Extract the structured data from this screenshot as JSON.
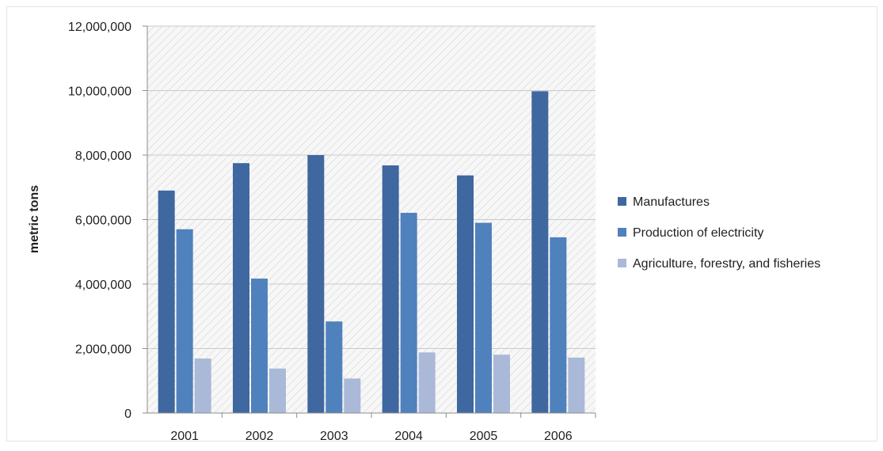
{
  "chart_data": {
    "type": "bar",
    "title": "",
    "xlabel": "",
    "ylabel": "metric tons",
    "categories": [
      "2001",
      "2002",
      "2003",
      "2004",
      "2005",
      "2006"
    ],
    "ylim": [
      0,
      12000000
    ],
    "yticks": [
      0,
      2000000,
      4000000,
      6000000,
      8000000,
      10000000,
      12000000
    ],
    "ytick_labels": [
      "0",
      "2,000,000",
      "4,000,000",
      "6,000,000",
      "8,000,000",
      "10,000,000",
      "12,000,000"
    ],
    "grid": true,
    "legend_position": "right",
    "series": [
      {
        "name": "Manufactures",
        "color": "#3f67a0",
        "values": [
          6900000,
          7750000,
          8000000,
          7680000,
          7370000,
          9980000
        ]
      },
      {
        "name": "Production of electricity",
        "color": "#4f81bd",
        "values": [
          5700000,
          4170000,
          2840000,
          6210000,
          5900000,
          5450000
        ]
      },
      {
        "name": "Agriculture, forestry, and fisheries",
        "color": "#aab9d8",
        "values": [
          1690000,
          1380000,
          1070000,
          1880000,
          1810000,
          1720000
        ]
      }
    ]
  }
}
